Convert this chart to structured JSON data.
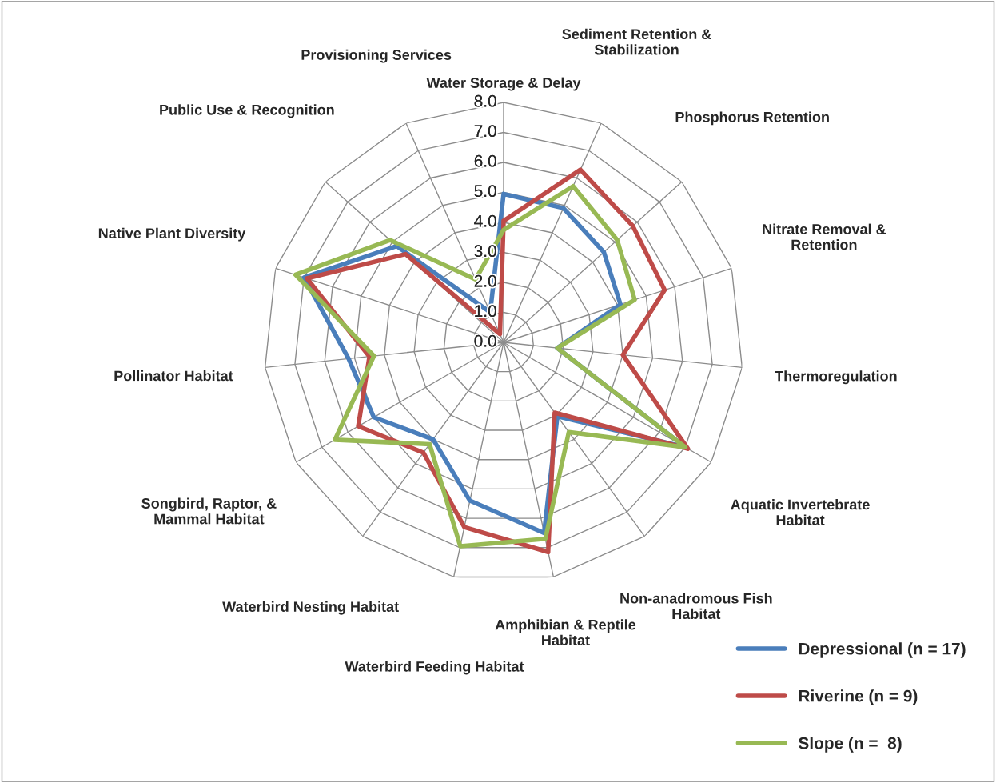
{
  "chart_data": {
    "type": "radar",
    "categories": [
      "Water Storage & Delay",
      "Sediment Retention &\nStabilization",
      "Phosphorus Retention",
      "Nitrate Removal &\nRetention",
      "Thermoregulation",
      "Aquatic Invertebrate\nHabitat",
      "Non-anadromous Fish\nHabitat",
      "Amphibian & Reptile\nHabitat",
      "Waterbird Feeding Habitat",
      "Waterbird Nesting Habitat",
      "Songbird, Raptor, &\nMammal Habitat",
      "Pollinator Habitat",
      "Native Plant Diversity",
      "Public Use & Recognition",
      "Provisioning Services"
    ],
    "series": [
      {
        "name": "Depressional (n = 17)",
        "color": "#4a7ebb",
        "values": [
          4.95,
          4.9,
          4.5,
          4.1,
          1.8,
          7.0,
          3.05,
          6.5,
          5.4,
          4.0,
          5.0,
          5.2,
          7.0,
          4.8,
          1.1
        ]
      },
      {
        "name": "Riverine (n = 9)",
        "color": "#be4b48",
        "values": [
          4.05,
          6.3,
          5.8,
          5.65,
          4.0,
          7.1,
          2.9,
          7.15,
          6.3,
          4.55,
          5.6,
          4.5,
          6.9,
          4.4,
          0.3
        ]
      },
      {
        "name": "Slope (n =  8)",
        "color": "#98b954",
        "values": [
          3.75,
          5.7,
          5.1,
          4.6,
          1.8,
          7.0,
          3.7,
          6.7,
          6.95,
          4.2,
          6.5,
          4.35,
          7.3,
          5.1,
          2.3
        ]
      }
    ],
    "ylim": [
      0,
      8
    ],
    "yticks": [
      {
        "value": 0,
        "label": "0.0"
      },
      {
        "value": 1,
        "label": "1.0"
      },
      {
        "value": 2,
        "label": "2.0"
      },
      {
        "value": 3,
        "label": "3.0"
      },
      {
        "value": 4,
        "label": "4.0"
      },
      {
        "value": 5,
        "label": "5.0"
      },
      {
        "value": 6,
        "label": "6.0"
      },
      {
        "value": 7,
        "label": "7.0"
      },
      {
        "value": 8,
        "label": "8.0"
      }
    ],
    "grid": true,
    "legend": "bottom right",
    "marker": "none",
    "line_style": "solid"
  }
}
